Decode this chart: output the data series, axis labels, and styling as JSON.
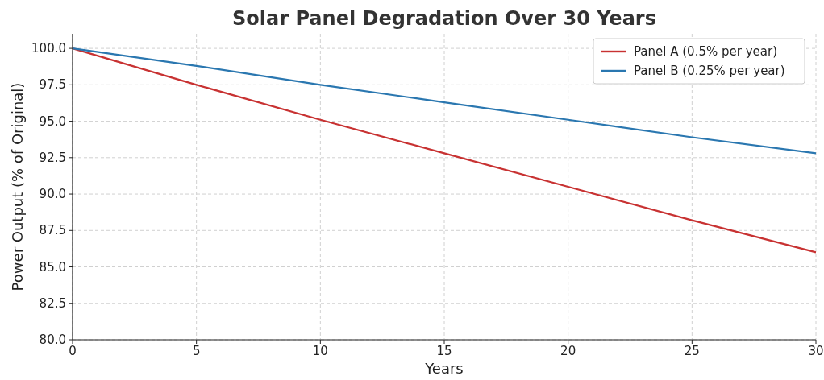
{
  "chart_data": {
    "type": "line",
    "title": "Solar Panel Degradation Over 30 Years",
    "xlabel": "Years",
    "ylabel": "Power Output (% of Original)",
    "x": [
      0,
      5,
      10,
      15,
      20,
      25,
      30
    ],
    "series": [
      {
        "name": "Panel A (0.5% per year)",
        "color": "#c83232",
        "values": [
          100,
          97.5,
          95.1,
          92.8,
          90.5,
          88.2,
          86.0
        ]
      },
      {
        "name": "Panel B (0.25% per year)",
        "color": "#2a77b0",
        "values": [
          100,
          98.8,
          97.5,
          96.3,
          95.1,
          93.9,
          92.8
        ]
      }
    ],
    "xlim": [
      0,
      30
    ],
    "xticks": [
      0,
      5,
      10,
      15,
      20,
      25,
      30
    ],
    "ylim": [
      80,
      101
    ],
    "yticks": [
      {
        "value": 80,
        "label": "80.0"
      },
      {
        "value": 82.5,
        "label": "82.5"
      },
      {
        "value": 85,
        "label": "85.0"
      },
      {
        "value": 87.5,
        "label": "87.5"
      },
      {
        "value": 90,
        "label": "90.0"
      },
      {
        "value": 92.5,
        "label": "92.5"
      },
      {
        "value": 95,
        "label": "95.0"
      },
      {
        "value": 97.5,
        "label": "97.5"
      },
      {
        "value": 100,
        "label": "100.0"
      }
    ],
    "grid": true,
    "legend": "top right",
    "line_style": "solid",
    "marker": "none"
  }
}
